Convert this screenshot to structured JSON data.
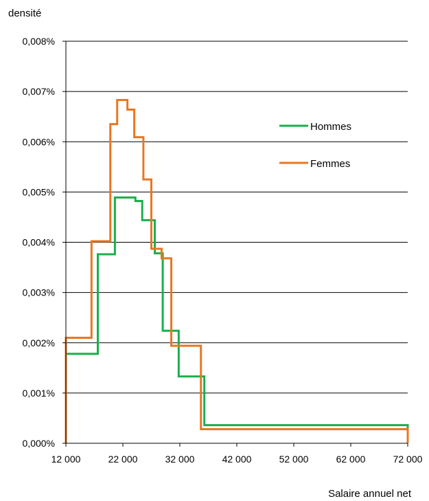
{
  "chart_data": {
    "type": "line",
    "step": true,
    "ylabel": "densité",
    "xlabel": "Salaire annuel net",
    "xlim": [
      12000,
      72000
    ],
    "ylim": [
      0,
      0.008
    ],
    "x_ticks": [
      12000,
      22000,
      32000,
      42000,
      52000,
      62000,
      72000
    ],
    "x_tick_labels": [
      "12 000",
      "22 000",
      "32 000",
      "42 000",
      "52 000",
      "62 000",
      "72 000"
    ],
    "y_ticks": [
      0,
      0.001,
      0.002,
      0.003,
      0.004,
      0.005,
      0.006,
      0.007,
      0.008
    ],
    "y_tick_labels": [
      "0,000%",
      "0,001%",
      "0,002%",
      "0,003%",
      "0,004%",
      "0,005%",
      "0,006%",
      "0,007%",
      "0,008%"
    ],
    "grid": "horizontal",
    "legend": "right",
    "series": [
      {
        "name": "Hommes",
        "color": "#1aaf4b",
        "edges": [
          12000,
          17600,
          20600,
          24200,
          25400,
          27600,
          29000,
          31800,
          36300,
          43900,
          72000
        ],
        "values": [
          0.00178,
          0.00376,
          0.00489,
          0.00482,
          0.00444,
          0.00378,
          0.00224,
          0.00133,
          0.00036,
          0.00036
        ]
      },
      {
        "name": "Femmes",
        "color": "#e87722",
        "edges": [
          12000,
          16500,
          19800,
          21000,
          22800,
          24000,
          25600,
          27000,
          28800,
          30500,
          35700,
          72000
        ],
        "values": [
          0.0021,
          0.00402,
          0.00635,
          0.00683,
          0.00664,
          0.00609,
          0.00525,
          0.00387,
          0.00368,
          0.00194,
          0.00028
        ]
      }
    ]
  }
}
